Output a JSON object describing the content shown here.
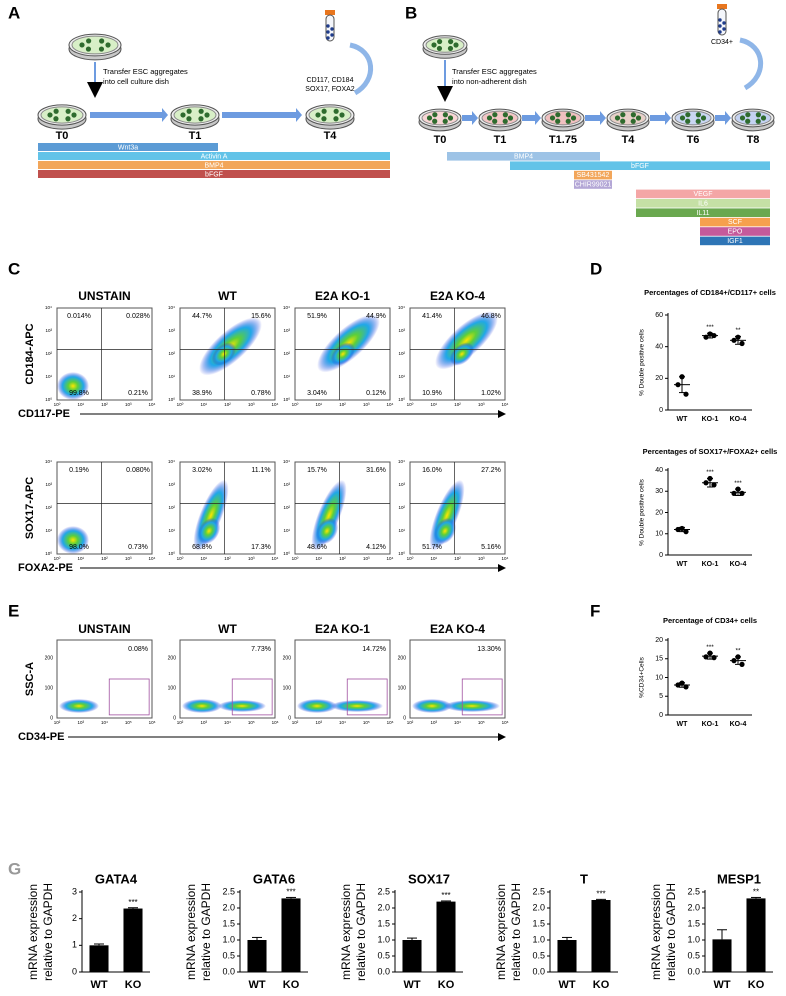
{
  "panel_letters": [
    "A",
    "B",
    "C",
    "D",
    "E",
    "F",
    "G"
  ],
  "diagram_a": {
    "note": [
      "Transfer ESC aggregates",
      "into cell culture dish"
    ],
    "tube_label": [
      "CD117, CD184",
      "SOX17, FOXA2"
    ],
    "timepoints": [
      "T0",
      "T1",
      "T4"
    ],
    "factors": [
      "Wnt3a",
      "Activin A",
      "BMP4",
      "bFGF"
    ]
  },
  "diagram_b": {
    "note": [
      "Transfer ESC aggregates",
      "into non-adherent dish"
    ],
    "tube_label": [
      "CD34+"
    ],
    "timepoints": [
      "T0",
      "T1",
      "T1.75",
      "T4",
      "T6",
      "T8"
    ],
    "factors": [
      "BMP4",
      "bFGF",
      "SB431542",
      "CHIR99021",
      "VEGF",
      "IL6",
      "IL11",
      "SCF",
      "EPO",
      "IGF1"
    ]
  },
  "flow_c": {
    "columns": [
      "UNSTAIN",
      "WT",
      "E2A KO-1",
      "E2A KO-4"
    ],
    "axis_ticks": [
      "10⁰",
      "10¹",
      "10²",
      "10³",
      "10⁴"
    ],
    "rows": [
      {
        "y_label": "CD184-APC",
        "x_label": "CD117-PE",
        "quadrants": [
          [
            "0.014%",
            "0.028%",
            "99.8%",
            "0.21%"
          ],
          [
            "44.7%",
            "15.6%",
            "38.9%",
            "0.78%"
          ],
          [
            "51.9%",
            "44.9%",
            "3.04%",
            "0.12%"
          ],
          [
            "41.4%",
            "46.8%",
            "10.9%",
            "1.02%"
          ]
        ]
      },
      {
        "y_label": "SOX17-APC",
        "x_label": "FOXA2-PE",
        "quadrants": [
          [
            "0.19%",
            "0.080%",
            "98.0%",
            "0.73%"
          ],
          [
            "3.02%",
            "11.1%",
            "68.8%",
            "17.3%"
          ],
          [
            "15.7%",
            "31.6%",
            "48.6%",
            "4.12%"
          ],
          [
            "16.0%",
            "27.2%",
            "51.7%",
            "5.16%"
          ]
        ]
      }
    ]
  },
  "flow_e": {
    "columns": [
      "UNSTAIN",
      "WT",
      "E2A KO-1",
      "E2A KO-4"
    ],
    "y_label": "SSC-A",
    "x_label": "CD34-PE",
    "xtick_labels": [
      "10²",
      "10³",
      "10⁴",
      "10⁵",
      "10⁶"
    ],
    "ylim": [
      0,
      260
    ],
    "yticks": [
      0,
      100,
      200
    ],
    "gates": [
      "0.08%",
      "7.73%",
      "14.72%",
      "13.30%"
    ]
  },
  "chart_data": [
    {
      "type": "dot_plot",
      "title": "Percentages of CD184+/CD117+ cells",
      "y_label": "% Double positive cells",
      "categories": [
        "WT",
        "KO-1",
        "KO-4"
      ],
      "points": [
        [
          21,
          16,
          10
        ],
        [
          48,
          46,
          47
        ],
        [
          46,
          44,
          42
        ]
      ],
      "values": [
        16,
        47,
        44
      ],
      "errors": [
        5,
        1.5,
        2.5
      ],
      "annotations": [
        null,
        "***",
        "**"
      ],
      "ylim": [
        0,
        60
      ],
      "yticks": [
        0,
        20,
        40,
        60
      ],
      "color": "#000000"
    },
    {
      "type": "dot_plot",
      "title": "Percentages of SOX17+/FOXA2+ cells",
      "y_label": "% Double positive cells",
      "categories": [
        "WT",
        "KO-1",
        "KO-4"
      ],
      "points": [
        [
          12.5,
          12,
          11
        ],
        [
          36,
          34,
          33
        ],
        [
          31,
          29,
          29
        ]
      ],
      "values": [
        12,
        34,
        29.5
      ],
      "errors": [
        1,
        2,
        1.5
      ],
      "annotations": [
        null,
        "***",
        "***"
      ],
      "ylim": [
        0,
        40
      ],
      "yticks": [
        0,
        10,
        20,
        30,
        40
      ],
      "color": "#000000"
    },
    {
      "type": "dot_plot",
      "title": "Percentage of CD34+ cells",
      "y_label": "%CD34+Cells",
      "categories": [
        "WT",
        "KO-1",
        "KO-4"
      ],
      "points": [
        [
          8.5,
          8,
          7.5
        ],
        [
          16.5,
          15.5,
          15.3
        ],
        [
          15.5,
          14.5,
          13.5
        ]
      ],
      "values": [
        8,
        15.7,
        14.5
      ],
      "errors": [
        0.6,
        0.8,
        1
      ],
      "annotations": [
        null,
        "***",
        "**"
      ],
      "ylim": [
        0,
        20
      ],
      "yticks": [
        0,
        5,
        10,
        15,
        20
      ],
      "color": "#000000"
    },
    {
      "type": "bar",
      "title": "GATA4",
      "y_label": [
        "mRNA expression",
        "relative to GAPDH"
      ],
      "categories": [
        "WT",
        "KO"
      ],
      "values": [
        1.0,
        2.38
      ],
      "errors": [
        0.05,
        0.03
      ],
      "annotations": [
        null,
        "***"
      ],
      "ylim": [
        0,
        3
      ],
      "yticks": [
        0,
        1,
        2,
        3
      ],
      "color": "#000000"
    },
    {
      "type": "bar",
      "title": "GATA6",
      "y_label": [
        "mRNA expression",
        "relative to GAPDH"
      ],
      "categories": [
        "WT",
        "KO"
      ],
      "values": [
        1.0,
        2.3
      ],
      "errors": [
        0.08,
        0.03
      ],
      "annotations": [
        null,
        "***"
      ],
      "ylim": [
        0,
        2.5
      ],
      "yticks": [
        {
          "value": 0,
          "label": "0.0"
        },
        0.5,
        {
          "value": 1,
          "label": "1.0"
        },
        1.5,
        {
          "value": 2,
          "label": "2.0"
        },
        2.5
      ],
      "color": "#000000"
    },
    {
      "type": "bar",
      "title": "SOX17",
      "y_label": [
        "mRNA expression",
        "relative to GAPDH"
      ],
      "categories": [
        "WT",
        "KO"
      ],
      "values": [
        1.0,
        2.2
      ],
      "errors": [
        0.06,
        0.02
      ],
      "annotations": [
        null,
        "***"
      ],
      "ylim": [
        0,
        2.5
      ],
      "yticks": [
        {
          "value": 0,
          "label": "0.0"
        },
        0.5,
        {
          "value": 1,
          "label": "1.0"
        },
        1.5,
        {
          "value": 2,
          "label": "2.0"
        },
        2.5
      ],
      "color": "#000000"
    },
    {
      "type": "bar",
      "title": "T",
      "y_label": [
        "mRNA expression",
        "relative to GAPDH"
      ],
      "categories": [
        "WT",
        "KO"
      ],
      "values": [
        1.0,
        2.25
      ],
      "errors": [
        0.08,
        0.02
      ],
      "annotations": [
        null,
        "***"
      ],
      "ylim": [
        0,
        2.5
      ],
      "yticks": [
        {
          "value": 0,
          "label": "0.0"
        },
        0.5,
        {
          "value": 1,
          "label": "1.0"
        },
        1.5,
        {
          "value": 2,
          "label": "2.0"
        },
        2.5
      ],
      "color": "#000000"
    },
    {
      "type": "bar",
      "title": "MESP1",
      "y_label": [
        "mRNA expression",
        "relative to GAPDH"
      ],
      "categories": [
        "WT",
        "KO"
      ],
      "values": [
        1.02,
        2.3
      ],
      "errors": [
        0.3,
        0.03
      ],
      "annotations": [
        null,
        "**"
      ],
      "ylim": [
        0,
        2.5
      ],
      "yticks": [
        {
          "value": 0,
          "label": "0.0"
        },
        0.5,
        {
          "value": 1,
          "label": "1.0"
        },
        1.5,
        {
          "value": 2,
          "label": "2.0"
        },
        2.5
      ],
      "color": "#000000"
    }
  ]
}
